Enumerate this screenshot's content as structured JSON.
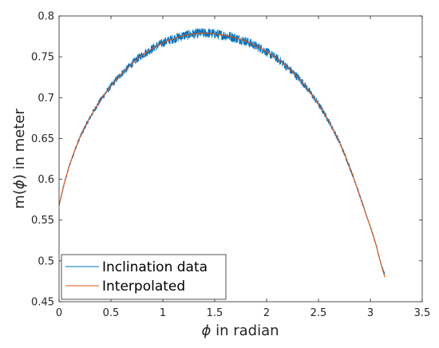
{
  "chart_data": {
    "type": "line",
    "title": "",
    "xlabel_symbol": "ϕ",
    "xlabel_rest": " in radian",
    "ylabel_prefix": "m(",
    "ylabel_symbol": "ϕ",
    "ylabel_suffix": ") in meter",
    "xlim": [
      0,
      3.5
    ],
    "ylim": [
      0.45,
      0.8
    ],
    "xticks": [
      0,
      0.5,
      1,
      1.5,
      2,
      2.5,
      3,
      3.5
    ],
    "xtick_labels": [
      "0",
      "0.5",
      "1",
      "1.5",
      "2",
      "2.5",
      "3",
      "3.5"
    ],
    "yticks": [
      0.45,
      0.5,
      0.55,
      0.6,
      0.65,
      0.7,
      0.75,
      0.8
    ],
    "ytick_labels": [
      "0.45",
      "0.5",
      "0.55",
      "0.6",
      "0.65",
      "0.7",
      "0.75",
      "0.8"
    ],
    "grid": false,
    "legend_position": "bottom-left",
    "series": [
      {
        "name": "Inclination data",
        "color": "#0072BD",
        "noisy": true,
        "x": [
          0,
          0.05,
          0.1,
          0.15,
          0.2,
          0.25,
          0.3,
          0.35,
          0.4,
          0.45,
          0.5,
          0.55,
          0.6,
          0.65,
          0.7,
          0.75,
          0.8,
          0.85,
          0.9,
          0.95,
          1.0,
          1.05,
          1.1,
          1.15,
          1.2,
          1.25,
          1.3,
          1.35,
          1.4,
          1.45,
          1.5,
          1.55,
          1.6,
          1.65,
          1.7,
          1.75,
          1.8,
          1.85,
          1.9,
          1.95,
          2.0,
          2.05,
          2.1,
          2.15,
          2.2,
          2.25,
          2.3,
          2.35,
          2.4,
          2.45,
          2.5,
          2.55,
          2.6,
          2.65,
          2.7,
          2.75,
          2.8,
          2.85,
          2.9,
          2.95,
          3.0,
          3.05,
          3.1,
          3.14
        ],
        "y": [
          0.568,
          0.595,
          0.617,
          0.635,
          0.651,
          0.664,
          0.676,
          0.687,
          0.697,
          0.706,
          0.714,
          0.722,
          0.729,
          0.735,
          0.741,
          0.747,
          0.752,
          0.756,
          0.76,
          0.764,
          0.767,
          0.77,
          0.772,
          0.774,
          0.776,
          0.777,
          0.778,
          0.779,
          0.779,
          0.779,
          0.778,
          0.777,
          0.776,
          0.775,
          0.773,
          0.771,
          0.769,
          0.766,
          0.763,
          0.76,
          0.756,
          0.752,
          0.748,
          0.743,
          0.737,
          0.731,
          0.725,
          0.718,
          0.71,
          0.701,
          0.692,
          0.682,
          0.671,
          0.659,
          0.646,
          0.631,
          0.615,
          0.598,
          0.579,
          0.56,
          0.542,
          0.522,
          0.497,
          0.483
        ]
      },
      {
        "name": "Interpolated",
        "color": "#D95319",
        "noisy": false,
        "x": [
          0,
          0.05,
          0.1,
          0.15,
          0.2,
          0.25,
          0.3,
          0.35,
          0.4,
          0.45,
          0.5,
          0.55,
          0.6,
          0.65,
          0.7,
          0.75,
          0.8,
          0.85,
          0.9,
          0.95,
          1.0,
          1.05,
          1.1,
          1.15,
          1.2,
          1.25,
          1.3,
          1.35,
          1.4,
          1.45,
          1.5,
          1.55,
          1.6,
          1.65,
          1.7,
          1.75,
          1.8,
          1.85,
          1.9,
          1.95,
          2.0,
          2.05,
          2.1,
          2.15,
          2.2,
          2.25,
          2.3,
          2.35,
          2.4,
          2.45,
          2.5,
          2.55,
          2.6,
          2.65,
          2.7,
          2.75,
          2.8,
          2.85,
          2.9,
          2.95,
          3.0,
          3.05,
          3.1,
          3.14
        ],
        "y": [
          0.568,
          0.595,
          0.617,
          0.635,
          0.651,
          0.664,
          0.676,
          0.687,
          0.697,
          0.706,
          0.714,
          0.722,
          0.729,
          0.735,
          0.741,
          0.747,
          0.752,
          0.756,
          0.76,
          0.764,
          0.767,
          0.77,
          0.772,
          0.774,
          0.776,
          0.777,
          0.778,
          0.779,
          0.779,
          0.779,
          0.778,
          0.777,
          0.776,
          0.775,
          0.773,
          0.771,
          0.769,
          0.766,
          0.763,
          0.76,
          0.756,
          0.752,
          0.748,
          0.743,
          0.737,
          0.731,
          0.725,
          0.718,
          0.71,
          0.701,
          0.692,
          0.682,
          0.671,
          0.659,
          0.646,
          0.631,
          0.615,
          0.598,
          0.579,
          0.56,
          0.542,
          0.522,
          0.497,
          0.48
        ]
      }
    ]
  }
}
